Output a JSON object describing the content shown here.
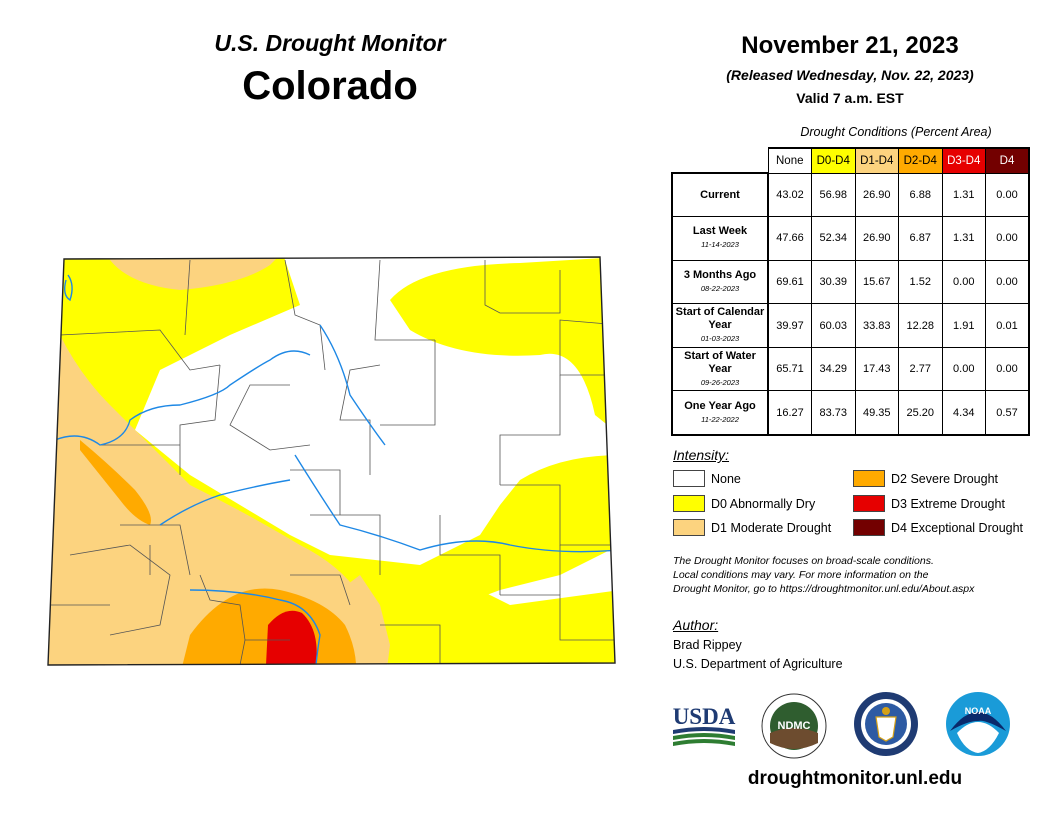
{
  "header": {
    "monitor_title": "U.S. Drought Monitor",
    "state": "Colorado",
    "date": "November 21, 2023",
    "released": "(Released Wednesday, Nov. 22, 2023)",
    "valid": "Valid 7 a.m. EST"
  },
  "table": {
    "title": "Drought Conditions (Percent Area)",
    "columns": [
      "None",
      "D0-D4",
      "D1-D4",
      "D2-D4",
      "D3-D4",
      "D4"
    ],
    "rows": [
      {
        "label": "Current",
        "date": "",
        "values": [
          "43.02",
          "56.98",
          "26.90",
          "6.88",
          "1.31",
          "0.00"
        ]
      },
      {
        "label": "Last Week",
        "date": "11-14-2023",
        "values": [
          "47.66",
          "52.34",
          "26.90",
          "6.87",
          "1.31",
          "0.00"
        ]
      },
      {
        "label": "3 Months Ago",
        "date": "08-22-2023",
        "values": [
          "69.61",
          "30.39",
          "15.67",
          "1.52",
          "0.00",
          "0.00"
        ]
      },
      {
        "label": "Start of Calendar Year",
        "date": "01-03-2023",
        "values": [
          "39.97",
          "60.03",
          "33.83",
          "12.28",
          "1.91",
          "0.01"
        ]
      },
      {
        "label": "Start of Water Year",
        "date": "09-26-2023",
        "values": [
          "65.71",
          "34.29",
          "17.43",
          "2.77",
          "0.00",
          "0.00"
        ]
      },
      {
        "label": "One Year Ago",
        "date": "11-22-2022",
        "values": [
          "16.27",
          "83.73",
          "49.35",
          "25.20",
          "4.34",
          "0.57"
        ]
      }
    ]
  },
  "legend": {
    "title": "Intensity:",
    "items": [
      {
        "label": "None",
        "color": "#ffffff"
      },
      {
        "label": "D0 Abnormally Dry",
        "color": "#ffff00"
      },
      {
        "label": "D1 Moderate Drought",
        "color": "#fcd37f"
      },
      {
        "label": "D2 Severe Drought",
        "color": "#ffaa00"
      },
      {
        "label": "D3 Extreme Drought",
        "color": "#e60000"
      },
      {
        "label": "D4 Exceptional Drought",
        "color": "#730000"
      }
    ]
  },
  "note": {
    "line1": "The Drought Monitor focuses on broad-scale conditions.",
    "line2": "Local conditions may vary. For more information on the",
    "line3": "Drought Monitor, go to https://droughtmonitor.unl.edu/About.aspx"
  },
  "author": {
    "title": "Author:",
    "name": "Brad Rippey",
    "org": "U.S. Department of Agriculture"
  },
  "logos": {
    "usda": "USDA",
    "ndmc": "NDMC",
    "noaa": "NOAA"
  },
  "footer": {
    "site": "droughtmonitor.unl.edu"
  }
}
